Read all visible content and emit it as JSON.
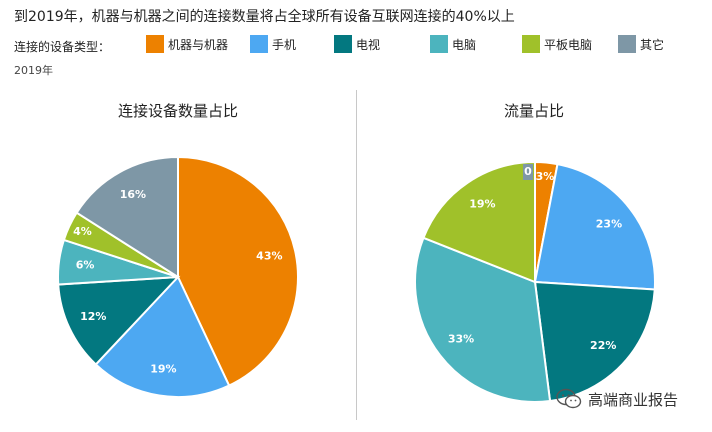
{
  "header": {
    "title": "到2019年，机器与机器之间的连接数量将占全球所有设备互联网连接的40%以上",
    "legend_label": "连接的设备类型：",
    "year": "2019年"
  },
  "legend": [
    {
      "name": "机器与机器",
      "color": "#ED8100"
    },
    {
      "name": "手机",
      "color": "#4DA8F2"
    },
    {
      "name": "电视",
      "color": "#037880"
    },
    {
      "name": "电脑",
      "color": "#4CB4BE"
    },
    {
      "name": "平板电脑",
      "color": "#A0C12A"
    },
    {
      "name": "其它",
      "color": "#7E97A6"
    }
  ],
  "chart_data": [
    {
      "type": "pie",
      "title": "连接设备数量占比",
      "slices": [
        {
          "name": "机器与机器",
          "value": 43,
          "label": "43%",
          "color": "#ED8100"
        },
        {
          "name": "手机",
          "value": 19,
          "label": "19%",
          "color": "#4DA8F2"
        },
        {
          "name": "电视",
          "value": 12,
          "label": "12%",
          "color": "#037880"
        },
        {
          "name": "电脑",
          "value": 6,
          "label": "6%",
          "color": "#4CB4BE"
        },
        {
          "name": "平板电脑",
          "value": 4,
          "label": "4%",
          "color": "#A0C12A"
        },
        {
          "name": "其它",
          "value": 16,
          "label": "16%",
          "color": "#7E97A6"
        }
      ]
    },
    {
      "type": "pie",
      "title": "流量占比",
      "slices": [
        {
          "name": "机器与机器",
          "value": 3,
          "label": "3%",
          "color": "#ED8100"
        },
        {
          "name": "手机",
          "value": 23,
          "label": "23%",
          "color": "#4DA8F2"
        },
        {
          "name": "电视",
          "value": 22,
          "label": "22%",
          "color": "#037880"
        },
        {
          "name": "电脑",
          "value": 33,
          "label": "33%",
          "color": "#4CB4BE"
        },
        {
          "name": "平板电脑",
          "value": 19,
          "label": "19%",
          "color": "#A0C12A"
        },
        {
          "name": "其它",
          "value": 0,
          "label": "0",
          "color": "#7E97A6"
        }
      ]
    }
  ],
  "watermark": {
    "text": "高端商业报告",
    "icon": "wechat-icon"
  }
}
